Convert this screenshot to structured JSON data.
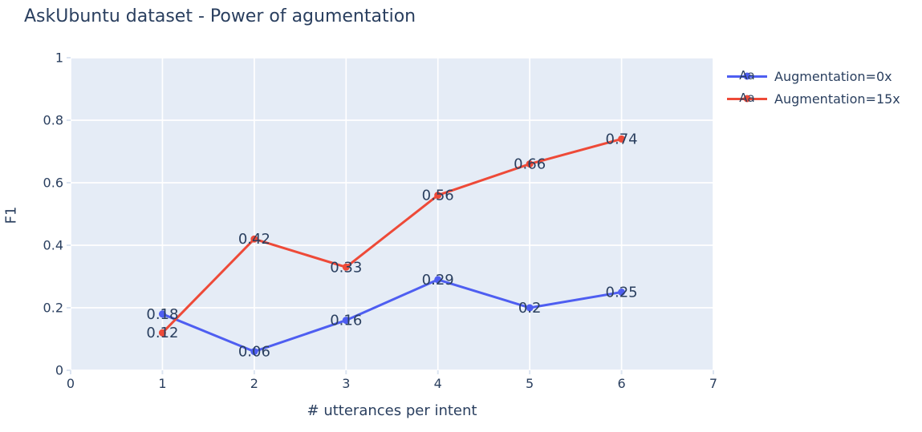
{
  "chart_data": {
    "type": "line",
    "title": "AskUbuntu dataset - Power of agumentation",
    "xlabel": "# utterances per intent",
    "ylabel": "F1",
    "xlim": [
      0,
      7
    ],
    "ylim": [
      0,
      1
    ],
    "xticks": [
      0,
      1,
      2,
      3,
      4,
      5,
      6,
      7
    ],
    "xtick_labels": [
      "0",
      "1",
      "2",
      "3",
      "4",
      "5",
      "6",
      "7"
    ],
    "yticks": [
      0,
      0.2,
      0.4,
      0.6,
      0.8,
      1
    ],
    "ytick_labels": [
      "0",
      "0.2",
      "0.4",
      "0.6",
      "0.8",
      "1"
    ],
    "grid": true,
    "legend_position": "top-right-outside",
    "legend_sample_text": "Aa",
    "x": [
      1,
      2,
      3,
      4,
      5,
      6
    ],
    "series": [
      {
        "name": "Augmentation=0x",
        "color": "#4e5ef1",
        "values": [
          0.18,
          0.06,
          0.16,
          0.29,
          0.2,
          0.25
        ],
        "point_labels": [
          "0.18",
          "0.06",
          "0.16",
          "0.29",
          "0.2",
          "0.25"
        ]
      },
      {
        "name": "Augmentation=15x",
        "color": "#ee4a38",
        "values": [
          0.12,
          0.42,
          0.33,
          0.56,
          0.66,
          0.74
        ],
        "point_labels": [
          "0.12",
          "0.42",
          "0.33",
          "0.56",
          "0.66",
          "0.74"
        ]
      }
    ],
    "colors": {
      "text": "#2a3f5f",
      "plot_bg": "#e5ecf6",
      "grid": "#ffffff",
      "tick": "#dbe4f1",
      "page_bg": "#ffffff"
    }
  }
}
